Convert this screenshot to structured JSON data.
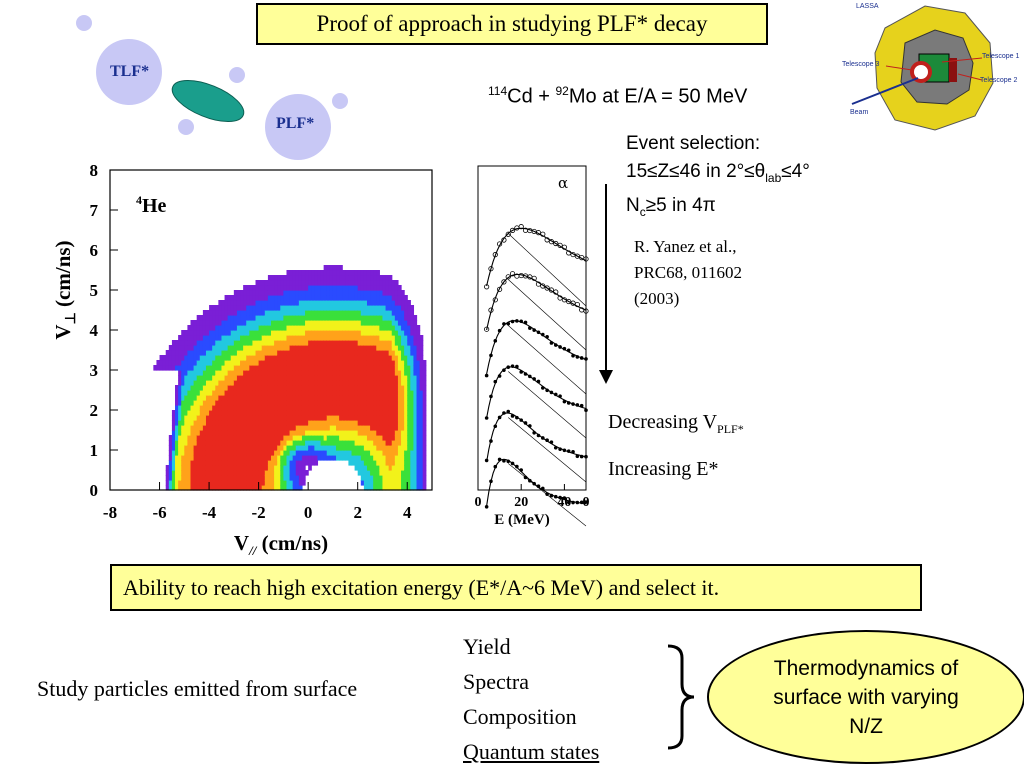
{
  "title": "Proof of approach in studying PLF* decay",
  "diagram": {
    "tlf_label": "TLF*",
    "plf_label": "PLF*"
  },
  "reaction": {
    "a_mass": "114",
    "a_elem": "Cd + ",
    "b_mass": "92",
    "b_elem": "Mo at E/A = 50 MeV"
  },
  "event_selection": {
    "line1": "Event selection:",
    "line2_pre": "15≤Z≤46 in 2°≤θ",
    "line2_sub": "lab",
    "line2_post": "≤4°",
    "line3_pre": "N",
    "line3_sub": "c",
    "line3_post": "≥5 in 4π"
  },
  "reference": {
    "line1": "R. Yanez et al.,",
    "line2": "PRC68, 011602",
    "line3": "(2003)"
  },
  "arrow_labels": {
    "decreasing_pre": "Decreasing V",
    "decreasing_sub": "PLF*",
    "increasing": "Increasing E*"
  },
  "detector": {
    "lassa": "LASSA",
    "telescope1": "Telescope 1",
    "telescope2": "Telescope 2",
    "telescope3": "Telescope 3",
    "beam": "Beam"
  },
  "velocity_plot": {
    "particle_mass": "4",
    "particle_elem": "He",
    "ylabel_main": "V",
    "ylabel_sub": "⊥",
    "ylabel_unit": " (cm/ns)",
    "xlabel_main": "V",
    "xlabel_sub": "//",
    "xlabel_unit": " (cm/ns)",
    "xticks": [
      "-8",
      "-6",
      "-4",
      "-2",
      "0",
      "2",
      "4"
    ],
    "yticks": [
      "0",
      "1",
      "2",
      "3",
      "4",
      "5",
      "6",
      "7",
      "8"
    ],
    "xlim": [
      -8,
      5
    ],
    "ylim": [
      0,
      8
    ],
    "colormap": [
      "#7a1fd6",
      "#2a4bff",
      "#22c8e0",
      "#3ae03a",
      "#f2f21a",
      "#ffa21a",
      "#e8281e"
    ]
  },
  "spectra_plot": {
    "particle": "α",
    "xlabel": "E (MeV)",
    "xticks": [
      "0",
      "20",
      "40",
      "0"
    ],
    "xlim": [
      0,
      50
    ],
    "spectra_count": 6
  },
  "ability": "Ability to reach high excitation energy (E*/A~6 MeV) and select it.",
  "study": "Study particles emitted from surface",
  "topics": [
    "Yield",
    "Spectra",
    "Composition",
    "Quantum states"
  ],
  "conclusion": {
    "line1": "Thermodynamics of",
    "line2": "surface with varying",
    "line3": "N/Z"
  },
  "colors": {
    "highlight": "#ffff99",
    "bubble": "#c8c8f5",
    "tlf_plf_disk": "#1a9e8c",
    "label_blue": "#1a2f8f"
  }
}
